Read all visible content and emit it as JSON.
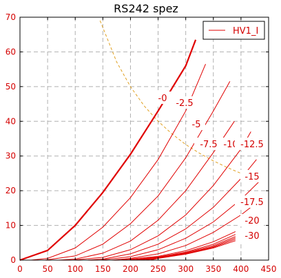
{
  "chart_data": {
    "type": "line",
    "title": "RS242 spez",
    "xlim": [
      0,
      450
    ],
    "ylim": [
      0,
      70
    ],
    "x_ticks": [
      0,
      50,
      100,
      150,
      200,
      250,
      300,
      350,
      400,
      450
    ],
    "y_ticks": [
      0,
      10,
      20,
      30,
      40,
      50,
      60,
      70
    ],
    "grid": true,
    "legend": {
      "placement": "top-right",
      "entries": [
        "HV1_I"
      ]
    },
    "colors": {
      "curve": "#e00000",
      "text": "#d40000",
      "limit": "#e0a020",
      "grid": "#b0b0b0"
    },
    "power_limit_curve": {
      "x": [
        145,
        175,
        200,
        225,
        250,
        275,
        300,
        325,
        350,
        375,
        400,
        425
      ],
      "y": [
        69,
        57.1,
        50,
        44.4,
        40,
        36.4,
        33.3,
        30.8,
        28.6,
        26.7,
        25,
        23.5
      ]
    },
    "series": [
      {
        "label": "-0",
        "x": [
          0,
          50,
          100,
          150,
          200,
          250,
          300,
          318
        ],
        "y": [
          0,
          2.8,
          10,
          19.5,
          30.5,
          43,
          56,
          63.5
        ]
      },
      {
        "label": "-2.5",
        "x": [
          20,
          50,
          100,
          150,
          200,
          250,
          300,
          336
        ],
        "y": [
          0,
          0.5,
          3.5,
          9.5,
          18,
          29,
          43,
          56.5
        ]
      },
      {
        "label": "-5",
        "x": [
          45,
          100,
          150,
          200,
          250,
          300,
          350,
          380
        ],
        "y": [
          0,
          1.2,
          4.6,
          10.5,
          18.5,
          29.5,
          43,
          51.5
        ]
      },
      {
        "label": "-7.5",
        "x": [
          70,
          100,
          150,
          200,
          250,
          300,
          350,
          388
        ],
        "y": [
          0,
          0.3,
          2,
          5.5,
          11.5,
          20,
          31,
          40
        ]
      },
      {
        "label": "-10",
        "x": [
          95,
          150,
          200,
          250,
          300,
          350,
          400,
          418
        ],
        "y": [
          0,
          0.8,
          3,
          7,
          13,
          21.5,
          32,
          37
        ]
      },
      {
        "label": "-12.5",
        "x": [
          120,
          150,
          200,
          250,
          300,
          350,
          400,
          428
        ],
        "y": [
          0,
          0.3,
          1.8,
          4.6,
          9,
          15.2,
          23.5,
          29
        ]
      },
      {
        "label": "-15",
        "x": [
          145,
          200,
          250,
          300,
          350,
          400,
          432
        ],
        "y": [
          0,
          1,
          3,
          6.3,
          11,
          17.5,
          22.5
        ]
      },
      {
        "label": "-17.5",
        "x": [
          165,
          200,
          250,
          300,
          350,
          400,
          432
        ],
        "y": [
          0,
          0.5,
          1.8,
          4.2,
          8,
          13,
          17
        ]
      },
      {
        "label": "-20",
        "x": [
          180,
          250,
          300,
          350,
          390
        ],
        "y": [
          0,
          1.1,
          2.7,
          5.3,
          8.2
        ]
      },
      {
        "label": "",
        "x": [
          195,
          250,
          300,
          350,
          390
        ],
        "y": [
          0,
          0.9,
          2.3,
          4.6,
          7.4
        ]
      },
      {
        "label": "",
        "x": [
          205,
          250,
          300,
          350,
          390
        ],
        "y": [
          0,
          0.8,
          2.1,
          4.2,
          6.8
        ]
      },
      {
        "label": "",
        "x": [
          215,
          250,
          300,
          350,
          390
        ],
        "y": [
          0,
          0.7,
          1.9,
          3.9,
          6.4
        ]
      },
      {
        "label": "",
        "x": [
          225,
          250,
          300,
          350,
          390
        ],
        "y": [
          0,
          0.6,
          1.8,
          3.7,
          6.0
        ]
      },
      {
        "label": "-30",
        "x": [
          235,
          250,
          300,
          350,
          390
        ],
        "y": [
          0,
          0.5,
          1.7,
          3.5,
          5.6
        ]
      }
    ]
  }
}
